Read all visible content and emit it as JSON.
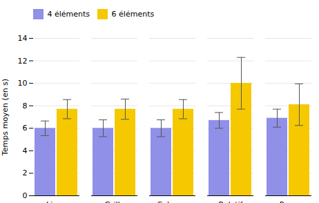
{
  "chart_data": {
    "type": "bar",
    "categories": [
      "Ligne",
      "Grille",
      "Colonne",
      "Relatif",
      "Page"
    ],
    "series": [
      {
        "name": "4 éléments",
        "color": "#9090e8",
        "values": [
          6.0,
          6.0,
          6.0,
          6.7,
          6.9
        ],
        "errors": [
          0.65,
          0.75,
          0.75,
          0.7,
          0.8
        ]
      },
      {
        "name": "6 éléments",
        "color": "#f5c800",
        "values": [
          7.7,
          7.7,
          7.7,
          10.0,
          8.1
        ],
        "errors": [
          0.85,
          0.9,
          0.85,
          2.3,
          1.85
        ]
      }
    ],
    "ylabel": "Temps moyen (en s)",
    "ylim": [
      0,
      14
    ],
    "yticks": [
      0,
      2,
      4,
      6,
      8,
      10,
      12,
      14
    ],
    "grid": true,
    "legend": "upper left"
  }
}
